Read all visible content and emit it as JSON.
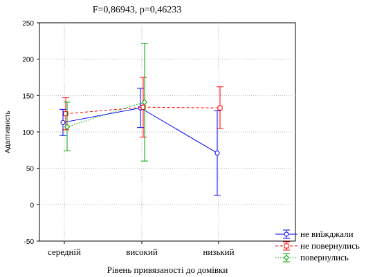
{
  "chart_data": {
    "type": "line",
    "title": "F=0,86943, p=0,46233",
    "xlabel": "Рівень привязаності до домівки",
    "ylabel": "Адаптивність",
    "categories": [
      "середній",
      "високий",
      "низький"
    ],
    "ylim": [
      -50,
      250
    ],
    "yticks": [
      "-50",
      "0",
      "50",
      "100",
      "150",
      "200",
      "250"
    ],
    "grid": true,
    "legend_position": "bottom-right",
    "series": [
      {
        "name": "не виїжджали",
        "color": "#0000ff",
        "line_style": "solid",
        "marker": "circle",
        "values": [
          113,
          133,
          71
        ],
        "lower": [
          95,
          106,
          13
        ],
        "upper": [
          131,
          160,
          129
        ]
      },
      {
        "name": "не повернулись",
        "color": "#ff0000",
        "line_style": "dashed",
        "marker": "square",
        "values": [
          125,
          134,
          133
        ],
        "lower": [
          103,
          93,
          105
        ],
        "upper": [
          147,
          175,
          162
        ]
      },
      {
        "name": "повернулись",
        "color": "#00a000",
        "line_style": "dotted",
        "marker": "diamond",
        "values": [
          107,
          141,
          null
        ],
        "lower": [
          74,
          60,
          null
        ],
        "upper": [
          141,
          222,
          null
        ]
      }
    ]
  }
}
